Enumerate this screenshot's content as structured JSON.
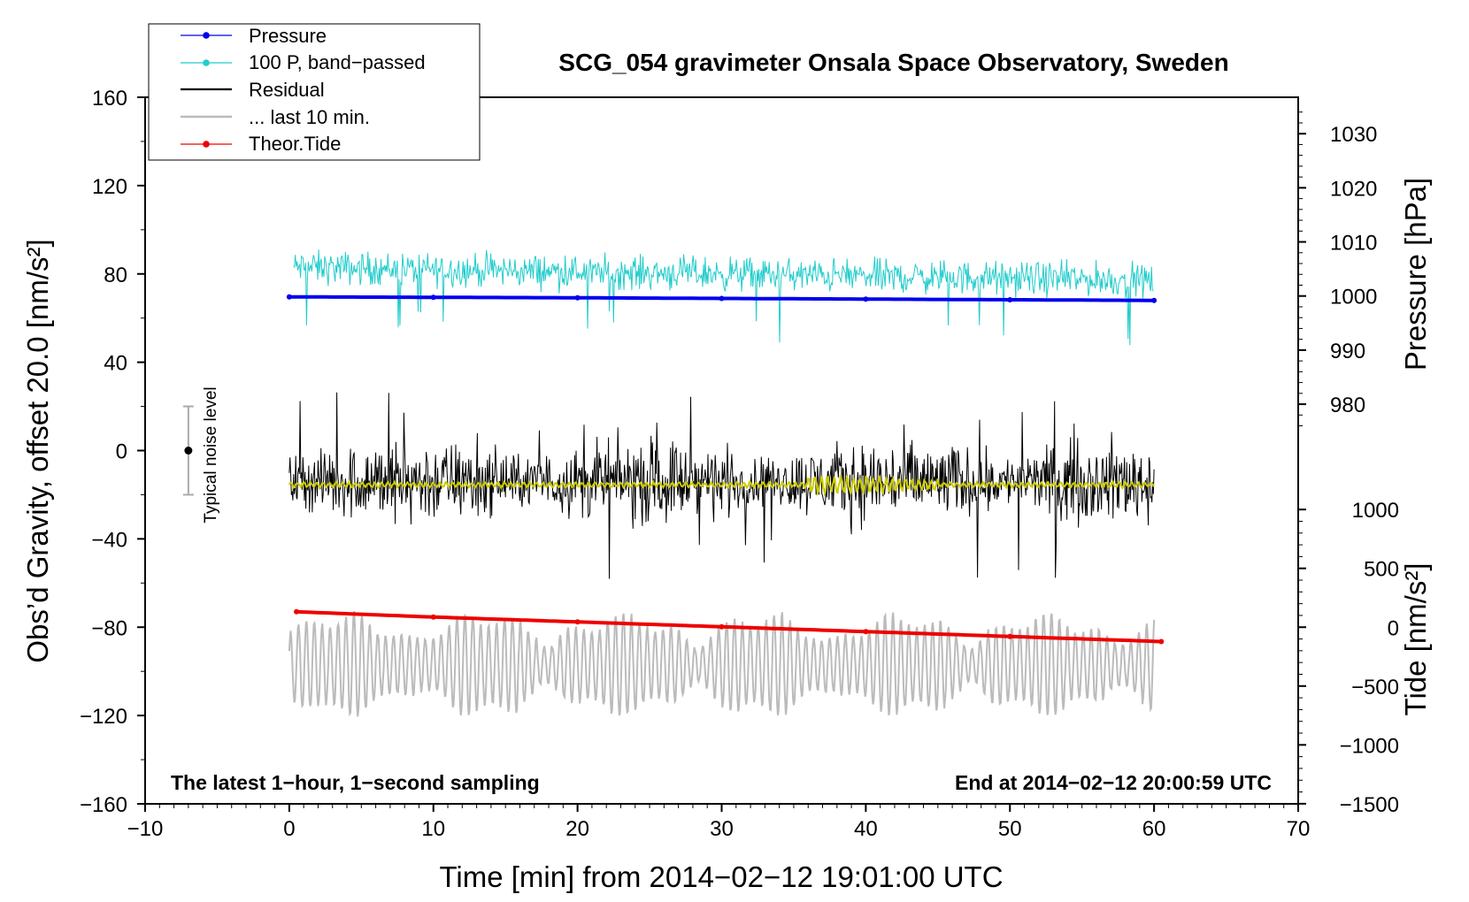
{
  "chart_data": {
    "type": "line",
    "title": "SCG_054 gravimeter Onsala Space Observatory, Sweden",
    "xlabel": "Time [min] from 2014−02−12 19:01:00 UTC",
    "ylabel_left": "Obs’d Gravity, offset 20.0 [nm/s²]",
    "ylabel_right_pressure": "Pressure [hPa]",
    "ylabel_right_tide": "Tide [nm/s²]",
    "xlim": [
      -10,
      70
    ],
    "ylim": [
      -160,
      160
    ],
    "x_ticks": [
      "−10",
      "0",
      "10",
      "20",
      "30",
      "40",
      "50",
      "60",
      "70"
    ],
    "x_tick_values": [
      -10,
      0,
      10,
      20,
      30,
      40,
      50,
      60,
      70
    ],
    "y_ticks": [
      "160",
      "120",
      "80",
      "40",
      "0",
      "−40",
      "−80",
      "−120",
      "−160"
    ],
    "y_tick_values": [
      160,
      120,
      80,
      40,
      0,
      -40,
      -80,
      -120,
      -160
    ],
    "pressure_axis": {
      "ticks": [
        "1030",
        "1020",
        "1010",
        "1000",
        "990",
        "980"
      ],
      "tick_values": [
        1030,
        1020,
        1010,
        1000,
        990,
        980
      ],
      "gravity_at_1000": 70,
      "gravity_per_hpa": 2.45
    },
    "tide_axis": {
      "ticks": [
        "1000",
        "500",
        "0",
        "−500",
        "−1000",
        "−1500"
      ],
      "tick_values": [
        1000,
        500,
        0,
        -500,
        -1000,
        -1500
      ],
      "gravity_at_0": -80,
      "gravity_per_unit": 0.0533
    },
    "series": [
      {
        "name": "Pressure",
        "color": "#0000ee",
        "style": "line-dots",
        "x": [
          0,
          10,
          20,
          30,
          40,
          50,
          60
        ],
        "y": [
          69.6,
          69.4,
          69.2,
          68.9,
          68.6,
          68.3,
          68.0
        ]
      },
      {
        "name": "100 P, band−passed",
        "color": "#22cccc",
        "style": "noise",
        "center": 83,
        "amplitude": 11,
        "x_range": [
          0.3,
          60
        ]
      },
      {
        "name": "Residual",
        "color": "#000000",
        "style": "noise",
        "center": -14,
        "amplitude": 22,
        "x_range": [
          0,
          60
        ]
      },
      {
        "name": "... last 10 min.",
        "color": "#bbbbbb",
        "style": "oscillation",
        "center": -97,
        "amplitude": 16,
        "x_range": [
          0,
          60
        ]
      },
      {
        "name": "Theor.Tide",
        "color": "#ee0000",
        "style": "line-dots",
        "x": [
          0.5,
          10,
          20,
          30,
          40,
          50,
          60.5
        ],
        "y": [
          -73,
          -75.4,
          -77.6,
          -79.8,
          -82,
          -84.2,
          -86.5
        ]
      }
    ],
    "smoothed_residual": {
      "color": "#cccc00",
      "center": -15.5,
      "amplitude": 1.5
    },
    "annotations": {
      "left_note": "The latest 1−hour, 1−second sampling",
      "right_note": "End at 2014−02−12 20:00:59 UTC",
      "noise_label": "Typical noise level",
      "noise_x": -7,
      "noise_y": 0,
      "noise_half_range": 20
    },
    "legend_position": "top-left"
  }
}
